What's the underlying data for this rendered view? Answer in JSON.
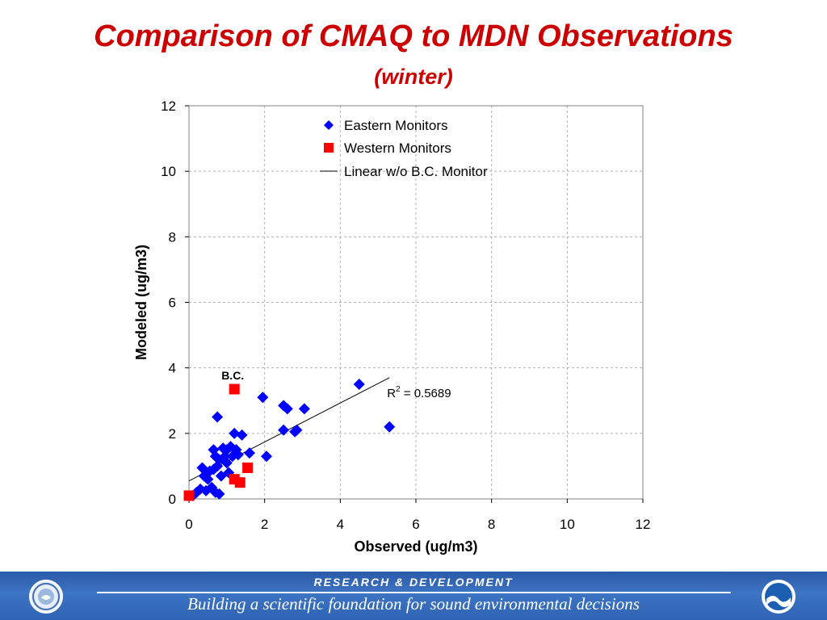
{
  "header": {
    "title": "Comparison of CMAQ to MDN Observations",
    "subtitle": "(winter)"
  },
  "footer": {
    "top_text": "RESEARCH & DEVELOPMENT",
    "bottom_text": "Building a scientific foundation for sound environmental decisions",
    "left_logo": "epa-seal",
    "right_logo": "noaa-logo",
    "banner_color": "#2f63b3"
  },
  "chart_data": {
    "type": "scatter",
    "title": "",
    "xlabel": "Observed (ug/m3)",
    "ylabel": "Modeled (ug/m3)",
    "xlim": [
      0,
      12
    ],
    "ylim": [
      0,
      12
    ],
    "xticks": [
      "0",
      "2",
      "4",
      "6",
      "8",
      "10",
      "12"
    ],
    "yticks": [
      "0",
      "2",
      "4",
      "6",
      "8",
      "10",
      "12"
    ],
    "grid": true,
    "legend_position": "top-center",
    "series": [
      {
        "name": "Eastern Monitors",
        "marker": "diamond",
        "color": "#0000ff",
        "points": [
          [
            0.1,
            0.1
          ],
          [
            0.2,
            0.2
          ],
          [
            0.3,
            0.3
          ],
          [
            0.35,
            0.95
          ],
          [
            0.4,
            0.7
          ],
          [
            0.45,
            0.25
          ],
          [
            0.5,
            0.6
          ],
          [
            0.55,
            0.85
          ],
          [
            0.6,
            0.35
          ],
          [
            0.65,
            1.5
          ],
          [
            0.65,
            0.9
          ],
          [
            0.7,
            1.3
          ],
          [
            0.7,
            0.2
          ],
          [
            0.75,
            2.5
          ],
          [
            0.75,
            1.0
          ],
          [
            0.8,
            0.15
          ],
          [
            0.8,
            1.2
          ],
          [
            0.85,
            0.7
          ],
          [
            0.9,
            1.55
          ],
          [
            0.95,
            1.3
          ],
          [
            1.0,
            1.1
          ],
          [
            1.0,
            1.5
          ],
          [
            1.05,
            0.8
          ],
          [
            1.1,
            1.6
          ],
          [
            1.15,
            1.3
          ],
          [
            1.2,
            2.0
          ],
          [
            1.25,
            1.5
          ],
          [
            1.3,
            1.35
          ],
          [
            1.4,
            1.95
          ],
          [
            1.6,
            1.4
          ],
          [
            1.95,
            3.1
          ],
          [
            2.05,
            1.3
          ],
          [
            2.5,
            2.85
          ],
          [
            2.5,
            2.1
          ],
          [
            2.6,
            2.75
          ],
          [
            2.8,
            2.05
          ],
          [
            2.85,
            2.1
          ],
          [
            3.05,
            2.75
          ],
          [
            4.5,
            3.5
          ],
          [
            5.3,
            2.2
          ]
        ]
      },
      {
        "name": "Western Monitors",
        "marker": "square",
        "color": "#ff0000",
        "points": [
          [
            0.0,
            0.1
          ],
          [
            1.2,
            3.35
          ],
          [
            1.2,
            0.6
          ],
          [
            1.35,
            0.5
          ],
          [
            1.55,
            0.95
          ]
        ]
      },
      {
        "name": "Linear w/o B.C. Monitor",
        "type": "line",
        "color": "#000000",
        "points": [
          [
            0.0,
            0.55
          ],
          [
            5.3,
            3.7
          ]
        ]
      }
    ],
    "annotations": [
      {
        "text": "B.C.",
        "x": 1.2,
        "y": 3.35
      },
      {
        "text": "R",
        "sup": "2",
        "value_text": " = 0.5689",
        "x": 5.3,
        "y": 3.2
      }
    ]
  }
}
